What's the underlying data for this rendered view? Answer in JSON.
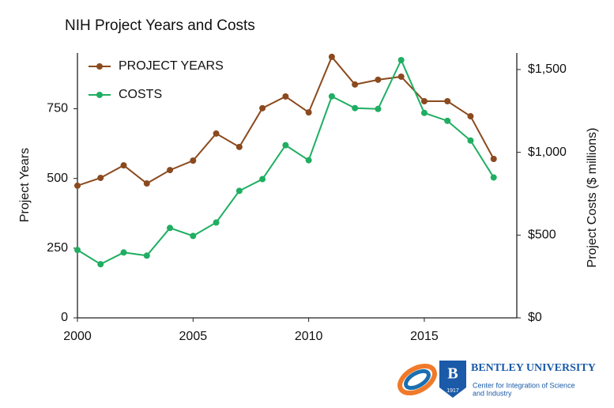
{
  "chart_data": {
    "type": "line",
    "title": "NIH Project Years and Costs",
    "x": [
      2000,
      2001,
      2002,
      2003,
      2004,
      2005,
      2006,
      2007,
      2008,
      2009,
      2010,
      2011,
      2012,
      2013,
      2014,
      2015,
      2016,
      2017,
      2018
    ],
    "series": [
      {
        "name": "PROJECT YEARS",
        "color": "#8b4a1e",
        "values": [
          474,
          502,
          547,
          482,
          530,
          564,
          661,
          613,
          752,
          794,
          737,
          936,
          837,
          854,
          865,
          777,
          777,
          723,
          570
        ]
      },
      {
        "name": "COSTS",
        "color": "#1fae62",
        "axis": "y2",
        "values": [
          410,
          324,
          395,
          376,
          543,
          495,
          576,
          767,
          838,
          1043,
          952,
          1338,
          1267,
          1262,
          1557,
          1238,
          1190,
          1071,
          848
        ]
      }
    ],
    "xlim": [
      2000,
      2019
    ],
    "xticks": [
      2000,
      2005,
      2010,
      2015
    ],
    "ylim": [
      0,
      950
    ],
    "yticks": [
      0,
      250,
      500,
      750
    ],
    "y2lim": [
      0,
      1600
    ],
    "y2ticks": [
      {
        "value": 0,
        "label": "$0"
      },
      {
        "value": 500,
        "label": "$500"
      },
      {
        "value": 1000,
        "label": "$1,000"
      },
      {
        "value": 1500,
        "label": "$1,500"
      }
    ],
    "ylabel": "Project Years",
    "y2label": "Project Costs ($ millions)",
    "legend": "upper-left",
    "grid": false
  },
  "logo": {
    "letter": "B",
    "year": "1917",
    "name": "BENTLEY UNIVERSITY",
    "subtitle_lines": [
      "Center for Integration of Science",
      "and Industry"
    ]
  }
}
